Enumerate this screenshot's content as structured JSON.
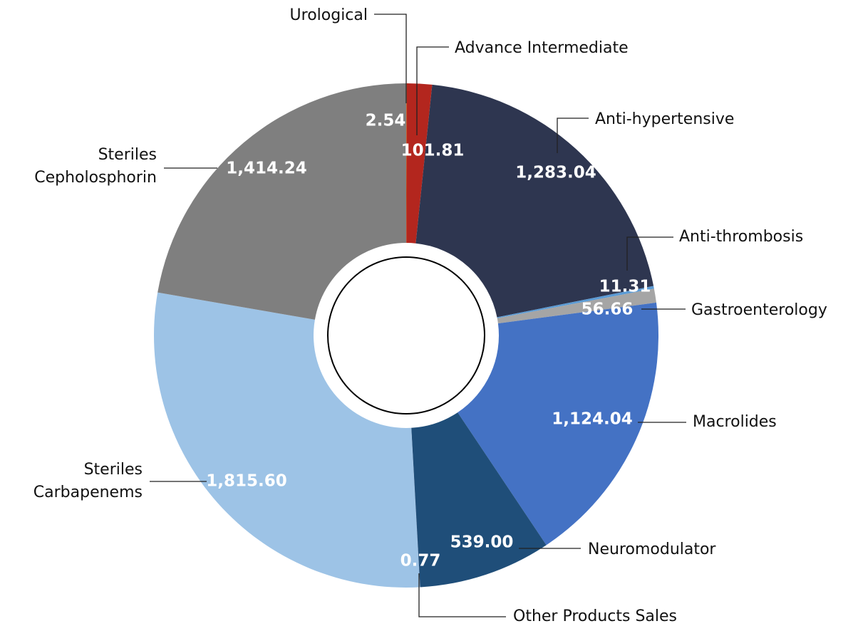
{
  "chart_data": {
    "type": "donut",
    "categories": [
      "Urological",
      "Advance Intermediate",
      "Anti-hypertensive",
      "Anti-thrombosis",
      "Gastroenterology",
      "Macrolides",
      "Neuromodulator",
      "Other Products Sales",
      "Steriles\nCarbapenems",
      "Steriles\nCepholosphorin"
    ],
    "values": [
      2.54,
      101.81,
      1283.04,
      11.31,
      56.66,
      1124.04,
      539.0,
      0.77,
      1815.6,
      1414.24
    ],
    "value_labels": [
      "2.54",
      "101.81",
      "1,283.04",
      "11.31",
      "56.66",
      "1,124.04",
      "539.00",
      "0.77",
      "1,815.60",
      "1,414.24"
    ],
    "colors": [
      "#c55a11",
      "#b3261e",
      "#2e3650",
      "#5b9bd5",
      "#a5a5a5",
      "#4472c4",
      "#1f4e79",
      "#264478",
      "#9dc3e6",
      "#7f7f7f"
    ]
  }
}
